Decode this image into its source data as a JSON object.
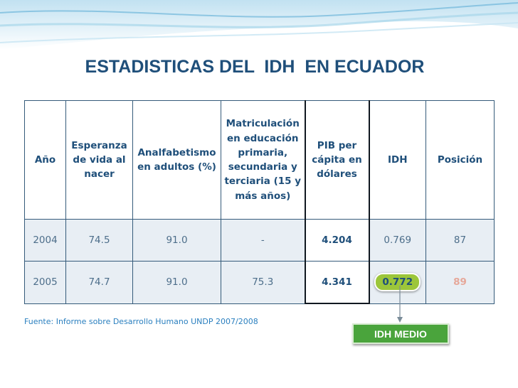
{
  "title": "ESTADISTICAS DEL  IDH  EN ECUADOR",
  "table": {
    "headers": [
      "Año",
      "Esperanza de vida al nacer",
      "Analfabetismo en adultos (%)",
      "Matriculación en educación primaria, secundaria y terciaria (15 y más años)",
      "PIB per cápita en dólares",
      "IDH",
      "Posición"
    ],
    "rows": [
      [
        "2004",
        "74.5",
        "91.0",
        "-",
        "4.204",
        "0.769",
        "87"
      ],
      [
        "2005",
        "74.7",
        "91.0",
        "75.3",
        "4.341",
        "0.772",
        "89"
      ]
    ]
  },
  "source": "Fuente: Informe sobre Desarrollo Humano UNDP 2007/2008",
  "callout": {
    "label": "IDH MEDIO"
  },
  "colors": {
    "title": "#1f4f7a",
    "cell_fill": "#e8eef4",
    "highlight": "#9cc63a",
    "callout": "#4aa43c",
    "source_text": "#2a7fbf"
  }
}
